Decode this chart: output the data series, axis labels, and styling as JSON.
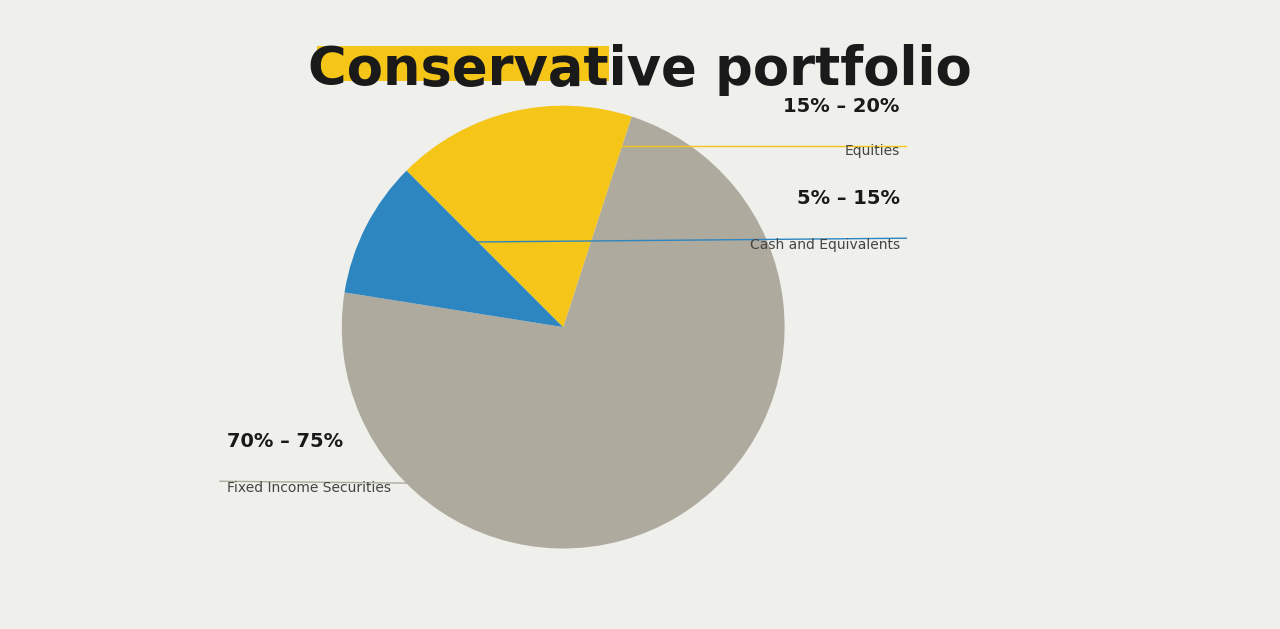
{
  "title_word1": "Conservative",
  "title_word2": " portfolio",
  "title_highlight_color": "#F5C518",
  "title_text_color": "#1a1a1a",
  "title_fontsize": 38,
  "background_color": "#EFEFEB",
  "slices": [
    {
      "label": "Fixed Income Securities",
      "pct_label": "70% – 75%",
      "value": 72.5,
      "color": "#AEAA9E"
    },
    {
      "label": "Cash and Equivalents",
      "pct_label": "5% – 15%",
      "value": 10.0,
      "color": "#2E86C1"
    },
    {
      "label": "Equities",
      "pct_label": "15% – 20%",
      "value": 17.5,
      "color": "#F5C518"
    }
  ],
  "startangle": 72,
  "annotation_fontsize_pct": 14,
  "annotation_fontsize_label": 10,
  "line_colors": [
    "#AEAA9E",
    "#2E86C1",
    "#F5C518"
  ]
}
